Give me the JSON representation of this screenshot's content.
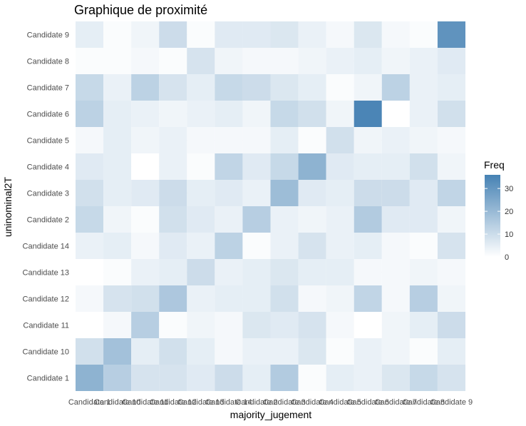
{
  "chart_data": {
    "type": "heatmap",
    "title": "Graphique de proximité",
    "xlabel": "majority_jugement",
    "ylabel": "uninominal2T",
    "x_categories": [
      "Candidate 1",
      "Candidate 10",
      "Candidate 11",
      "Candidate 12",
      "Candidate 13",
      "Candidate 14",
      "Candidate 2",
      "Candidate 3",
      "Candidate 4",
      "Candidate 5",
      "Candidate 6",
      "Candidate 7",
      "Candidate 8",
      "Candidate 9"
    ],
    "y_categories": [
      "Candidate 1",
      "Candidate 10",
      "Candidate 11",
      "Candidate 12",
      "Candidate 13",
      "Candidate 14",
      "Candidate 2",
      "Candidate 3",
      "Candidate 4",
      "Candidate 5",
      "Candidate 6",
      "Candidate 7",
      "Candidate 8",
      "Candidate 9"
    ],
    "values": [
      [
        22,
        14,
        8,
        8,
        6,
        10,
        5,
        15,
        1,
        5,
        4,
        7,
        11,
        8
      ],
      [
        9,
        18,
        5,
        9,
        5,
        2,
        4,
        4,
        7,
        1,
        4,
        3,
        1,
        5
      ],
      [
        0,
        2,
        14,
        1,
        3,
        2,
        7,
        6,
        8,
        2,
        0,
        3,
        5,
        10
      ],
      [
        2,
        8,
        9,
        16,
        4,
        5,
        5,
        9,
        2,
        3,
        12,
        2,
        14,
        3
      ],
      [
        0,
        1,
        4,
        5,
        10,
        4,
        5,
        7,
        5,
        5,
        2,
        2,
        3,
        2
      ],
      [
        4,
        5,
        2,
        6,
        4,
        13,
        1,
        4,
        8,
        4,
        5,
        2,
        1,
        8
      ],
      [
        11,
        3,
        1,
        9,
        6,
        4,
        14,
        4,
        3,
        4,
        15,
        6,
        6,
        3
      ],
      [
        9,
        5,
        6,
        10,
        5,
        6,
        4,
        19,
        6,
        5,
        10,
        10,
        6,
        12
      ],
      [
        6,
        5,
        0,
        4,
        1,
        12,
        6,
        11,
        22,
        6,
        5,
        5,
        9,
        3
      ],
      [
        2,
        5,
        3,
        4,
        2,
        2,
        2,
        5,
        1,
        9,
        3,
        4,
        3,
        2
      ],
      [
        13,
        5,
        4,
        3,
        4,
        5,
        3,
        11,
        9,
        3,
        35,
        0,
        4,
        9
      ],
      [
        11,
        4,
        13,
        8,
        5,
        11,
        10,
        7,
        5,
        1,
        3,
        13,
        4,
        5
      ],
      [
        1,
        1,
        2,
        1,
        8,
        3,
        2,
        2,
        3,
        4,
        5,
        3,
        4,
        6
      ],
      [
        5,
        1,
        3,
        10,
        1,
        6,
        6,
        7,
        4,
        2,
        7,
        2,
        1,
        31
      ]
    ],
    "color_scale": {
      "low_color": "#ffffff",
      "high_color": "#4682b4",
      "min": 0,
      "max": 36
    },
    "legend": {
      "title": "Freq",
      "placement": "right",
      "ticks": [
        0,
        10,
        20,
        30
      ]
    }
  }
}
